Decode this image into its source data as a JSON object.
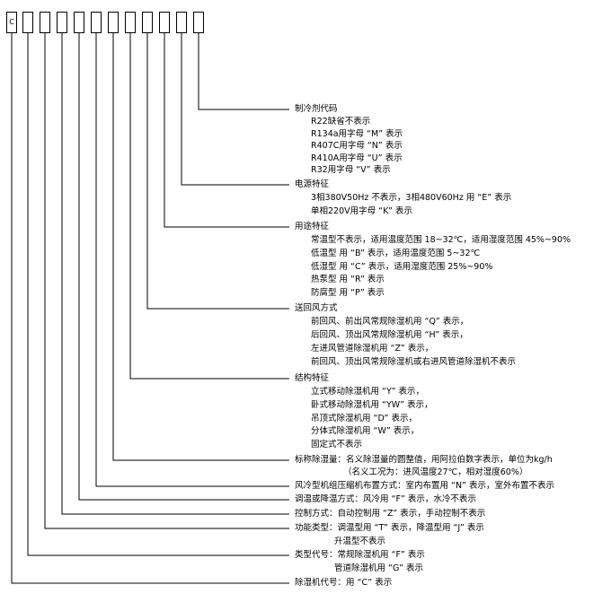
{
  "code_boxes": [
    "C",
    "",
    "",
    "",
    "",
    "",
    "",
    "",
    "",
    "",
    "",
    ""
  ],
  "sections": [
    {
      "heading": "制冷剂代码",
      "items": [
        "R22缺省不表示",
        "R134a用字母 “M” 表示",
        "R407C用字母 “N” 表示",
        "R410A用字母 “U” 表示",
        "R32用字母 “V” 表示"
      ]
    },
    {
      "heading": "电源特征",
      "items": [
        "3相380V50Hz 不表示，3相480V60Hz 用 “E” 表示",
        "单相220V用字母 “K” 表示"
      ]
    },
    {
      "heading": "用途特征",
      "items": [
        "常温型不表示，适用温度范围 18~32℃，适用湿度范围 45%~90%",
        "低温型 用 “B” 表示，适用温度范围 5~32℃",
        "低湿型 用 “C” 表示，适用湿度范围 25%~90%",
        "热泵型 用 “R” 表示",
        "防腐型 用 “P” 表示"
      ]
    },
    {
      "heading": "送回风方式",
      "items": [
        "前回风、前出风常规除湿机用 “Q” 表示，",
        "后回风、顶出风常规除湿机用 “H” 表示，",
        "左进风管道除湿机用 “Z” 表示，",
        "前回风、顶出风常规除湿机或右进风管道除湿机不表示"
      ]
    },
    {
      "heading": "结构特征",
      "items": [
        "立式移动除湿机用 “Y” 表示，",
        "卧式移动除湿机用 “YW” 表示，",
        "吊顶式除湿机用 “D” 表示，",
        "分体式除湿机用 “W” 表示，",
        "固定式不表示"
      ]
    },
    {
      "heading": "标称除湿量：名义除湿量的圆整值，用阿拉伯数字表示，单位为kg/h",
      "items": [
        "（名义工况为：进风温度27℃，相对湿度60%）"
      ]
    },
    {
      "heading": "风冷型机组压缩机布置方式：室内布置用 “N” 表示，室外布置不表示",
      "items": []
    },
    {
      "heading": "调温或降温方式：风冷用 “F” 表示，水冷不表示",
      "items": []
    },
    {
      "heading": "控制方式：自动控制用 “Z” 表示，手动控制不表示",
      "items": []
    },
    {
      "heading": "功能类型：调温型用 “T” 表示，降温型用 “J” 表示",
      "items": [
        "升温型不表示"
      ]
    },
    {
      "heading": "类型代号：常规除湿机用 “F” 表示",
      "items": [
        "管道除湿机用 “G” 表示"
      ]
    },
    {
      "heading": "除湿机代号：用 “C” 表示",
      "items": []
    }
  ]
}
